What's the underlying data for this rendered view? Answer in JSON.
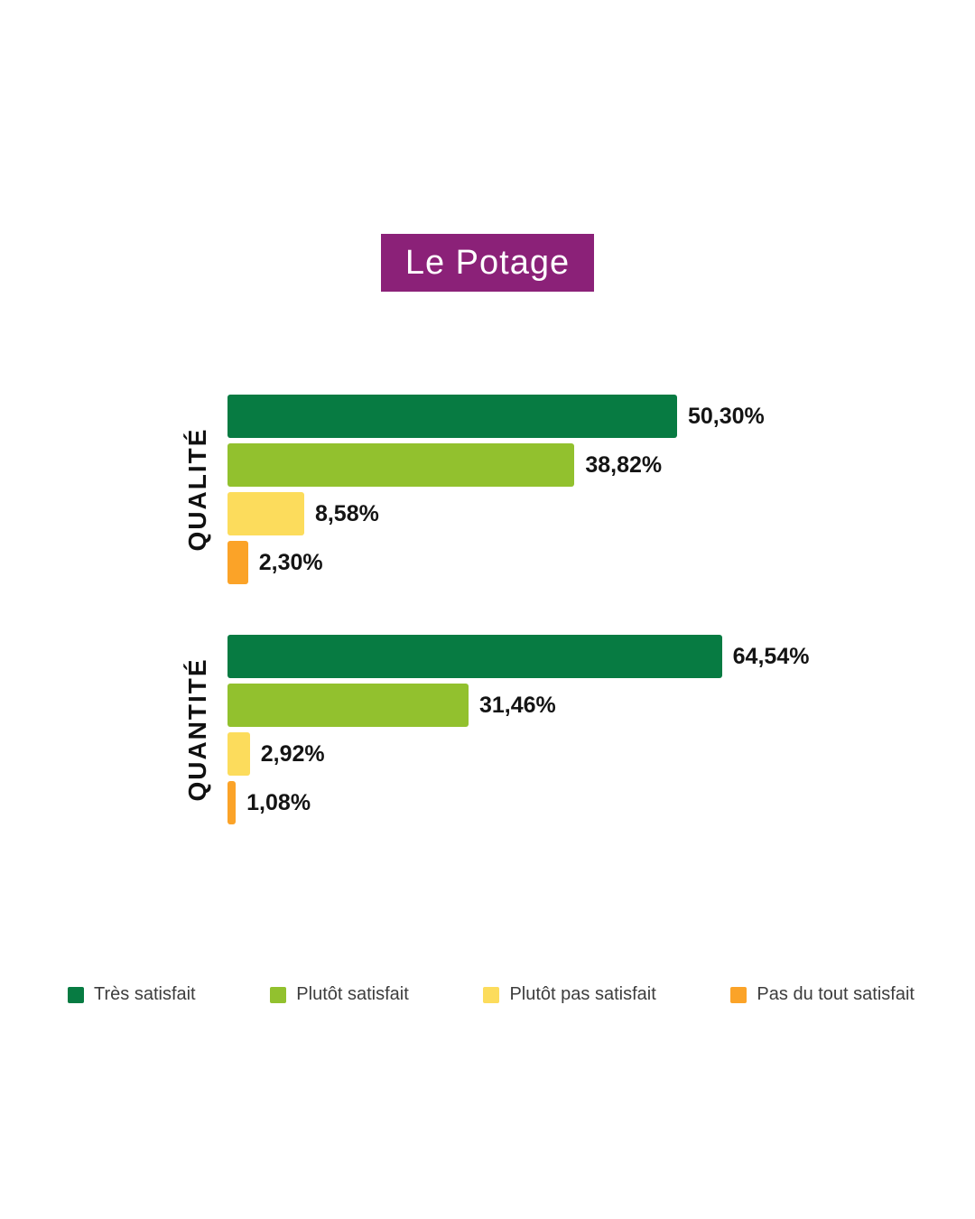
{
  "colors": {
    "title_background": "#8b2178",
    "title_text": "#ffffff",
    "very_satisfied": "#077b42",
    "rather_satisfied": "#92c12e",
    "rather_not_satisfied": "#fcdc5c",
    "not_at_all_satisfied": "#fba328"
  },
  "chart_data": {
    "type": "bar",
    "orientation": "horizontal",
    "title": "Le Potage",
    "grid": false,
    "legend_position": "bottom",
    "series": [
      {
        "name": "Très satisfait",
        "color": "#077b42"
      },
      {
        "name": "Plutôt satisfait",
        "color": "#92c12e"
      },
      {
        "name": "Plutôt pas satisfait",
        "color": "#fcdc5c"
      },
      {
        "name": "Pas du tout satisfait",
        "color": "#fba328"
      }
    ],
    "groups": [
      {
        "category": "QUALITÉ",
        "axis_range": [
          0,
          60
        ],
        "values": [
          50.3,
          38.82,
          8.58,
          2.3
        ],
        "value_labels": [
          "50,30%",
          "38,82%",
          "8,58%",
          "2,30%"
        ]
      },
      {
        "category": "QUANTITÉ",
        "axis_range": [
          0,
          70
        ],
        "values": [
          64.54,
          31.46,
          2.92,
          1.08
        ],
        "value_labels": [
          "64,54%",
          "31,46%",
          "2,92%",
          "1,08%"
        ]
      }
    ]
  }
}
